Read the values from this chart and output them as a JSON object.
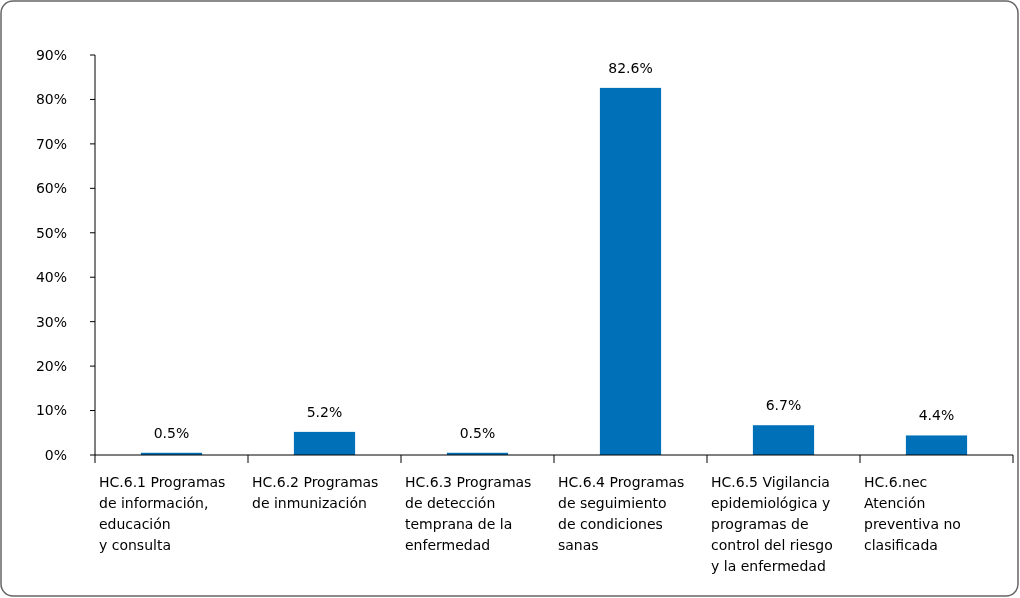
{
  "chart_data": {
    "type": "bar",
    "categories": [
      "HC.6.1 Programas\nde información,\neducación\ny consulta",
      "HC.6.2 Programas\nde inmunización",
      "HC.6.3 Programas\nde detección\ntemprana de la\nenfermedad",
      "HC.6.4 Programas\nde seguimiento\nde condiciones\nsanas",
      "HC.6.5 Vigilancia\nepidemiológica y\nprogramas de\ncontrol del riesgo\ny la enfermedad",
      "HC.6.nec\nAtención\npreventiva no\nclasificada"
    ],
    "values": [
      0.5,
      5.2,
      0.5,
      82.6,
      6.7,
      4.4
    ],
    "value_labels": [
      "0.5%",
      "5.2%",
      "0.5%",
      "82.6%",
      "6.7%",
      "4.4%"
    ],
    "color": "#0070b8",
    "ylim": [
      0,
      90
    ],
    "yticks": [
      {
        "value": 0,
        "label": "0%"
      },
      {
        "value": 10,
        "label": "10%"
      },
      {
        "value": 20,
        "label": "20%"
      },
      {
        "value": 30,
        "label": "30%"
      },
      {
        "value": 40,
        "label": "40%"
      },
      {
        "value": 50,
        "label": "50%"
      },
      {
        "value": 60,
        "label": "60%"
      },
      {
        "value": 70,
        "label": "70%"
      },
      {
        "value": 80,
        "label": "80%"
      },
      {
        "value": 90,
        "label": "90%"
      }
    ],
    "grid": false
  }
}
